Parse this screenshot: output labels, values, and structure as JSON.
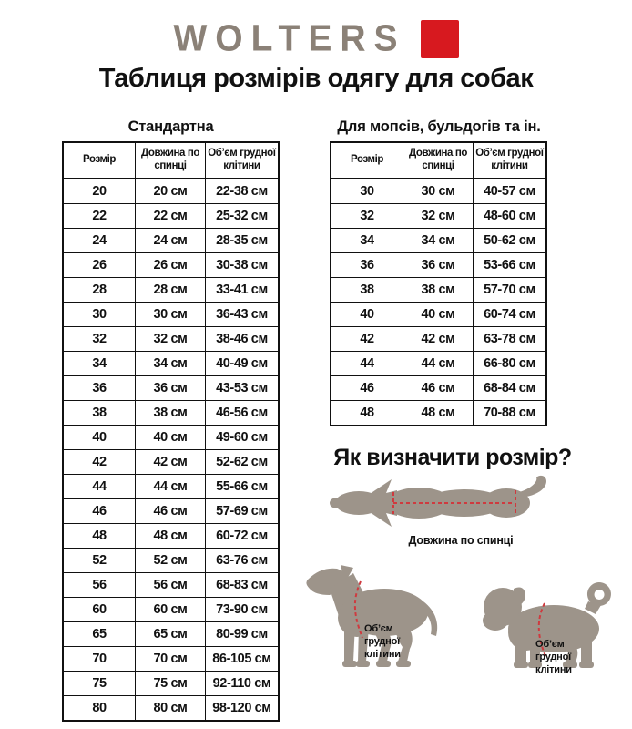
{
  "brand": {
    "logo_text": "WOLTERS",
    "logo_color": "#8b8177",
    "accent_red": "#d7191f"
  },
  "page_title": "Таблиця розмірів одягу для собак",
  "table_standard": {
    "title": "Стандартна",
    "headers": [
      "Розмір",
      "Довжина по спинці",
      "Об’єм грудної клітини"
    ],
    "rows": [
      [
        "20",
        "20 см",
        "22-38 см"
      ],
      [
        "22",
        "22 см",
        "25-32 см"
      ],
      [
        "24",
        "24 см",
        "28-35 см"
      ],
      [
        "26",
        "26 см",
        "30-38 см"
      ],
      [
        "28",
        "28 см",
        "33-41 см"
      ],
      [
        "30",
        "30 см",
        "36-43 см"
      ],
      [
        "32",
        "32 см",
        "38-46 см"
      ],
      [
        "34",
        "34 см",
        "40-49 см"
      ],
      [
        "36",
        "36 см",
        "43-53 см"
      ],
      [
        "38",
        "38 см",
        "46-56 см"
      ],
      [
        "40",
        "40 см",
        "49-60 см"
      ],
      [
        "42",
        "42 см",
        "52-62 см"
      ],
      [
        "44",
        "44 см",
        "55-66 см"
      ],
      [
        "46",
        "46 см",
        "57-69 см"
      ],
      [
        "48",
        "48 см",
        "60-72 см"
      ],
      [
        "52",
        "52 см",
        "63-76 см"
      ],
      [
        "56",
        "56 см",
        "68-83 см"
      ],
      [
        "60",
        "60 см",
        "73-90 см"
      ],
      [
        "65",
        "65 см",
        "80-99 см"
      ],
      [
        "70",
        "70 см",
        "86-105 см"
      ],
      [
        "75",
        "75 см",
        "92-110 см"
      ],
      [
        "80",
        "80 см",
        "98-120 см"
      ]
    ]
  },
  "table_pugs": {
    "title": "Для мопсів, бульдогів та ін.",
    "headers": [
      "Розмір",
      "Довжина по спинці",
      "Об’єм грудної клітини"
    ],
    "rows": [
      [
        "30",
        "30 см",
        "40-57 см"
      ],
      [
        "32",
        "32 см",
        "48-60 см"
      ],
      [
        "34",
        "34 см",
        "50-62 см"
      ],
      [
        "36",
        "36 см",
        "53-66 см"
      ],
      [
        "38",
        "38 см",
        "57-70 см"
      ],
      [
        "40",
        "40 см",
        "60-74 см"
      ],
      [
        "42",
        "42 см",
        "63-78 см"
      ],
      [
        "44",
        "44 см",
        "66-80 см"
      ],
      [
        "46",
        "46 см",
        "68-84 см"
      ],
      [
        "48",
        "48 см",
        "70-88 см"
      ]
    ]
  },
  "how_to": {
    "title": "Як визначити розмір?",
    "back_length_label": "Довжина по спинці",
    "chest_label_line1": "Об’єм",
    "chest_label_line2": "грудної",
    "chest_label_line3": "клітини",
    "silhouette_color": "#9d948a",
    "dash_color": "#cf3a3f"
  }
}
